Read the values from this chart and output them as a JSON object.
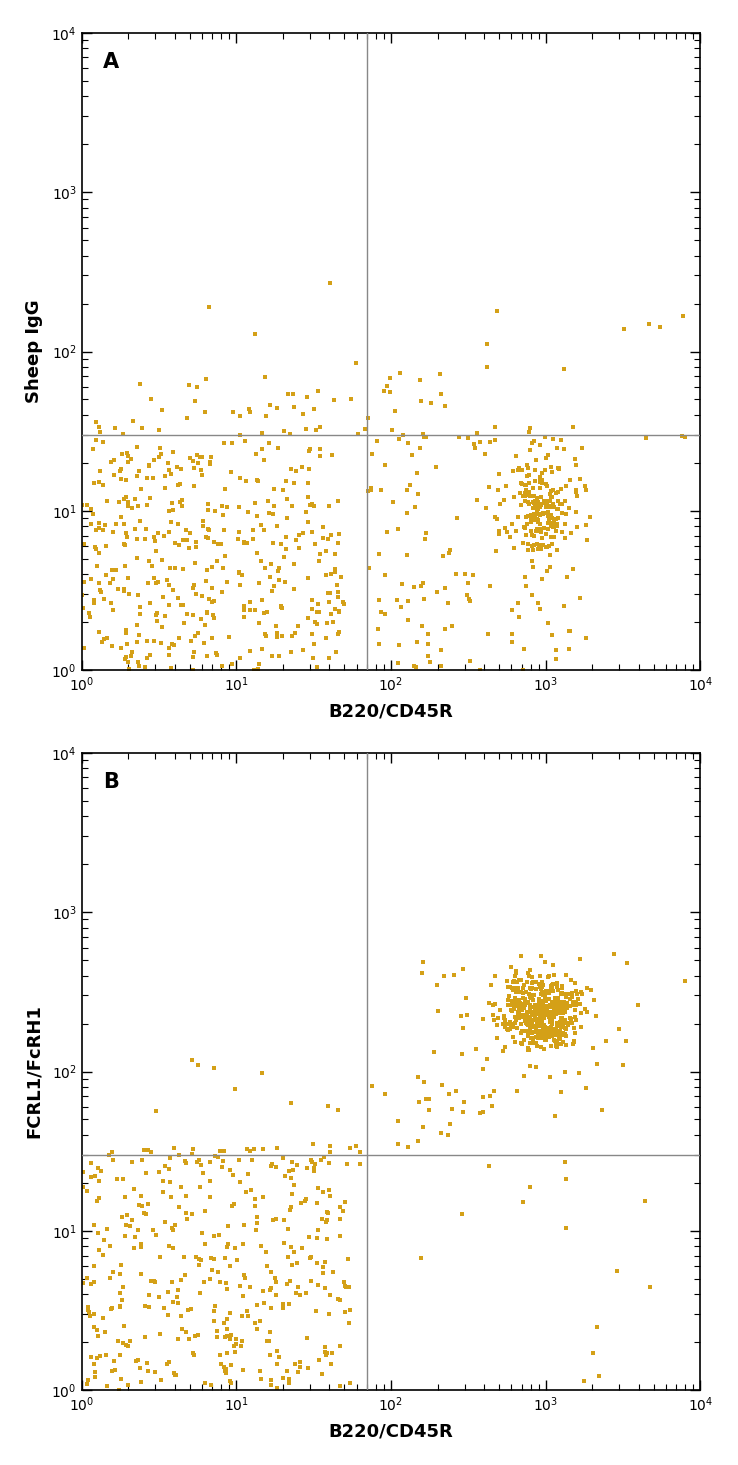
{
  "dot_color": "#D4A017",
  "line_color": "#888888",
  "background_color": "#ffffff",
  "xlim": [
    1,
    10000
  ],
  "ylim": [
    1,
    10000
  ],
  "xlabel": "B220/CD45R",
  "ylabel_A": "Sheep IgG",
  "ylabel_B": "FCRL1/FcRH1",
  "label_A": "A",
  "label_B": "B",
  "vline_x": 70,
  "hline_y_A": 30,
  "hline_y_B": 30,
  "dot_size": 7,
  "marker": "s"
}
